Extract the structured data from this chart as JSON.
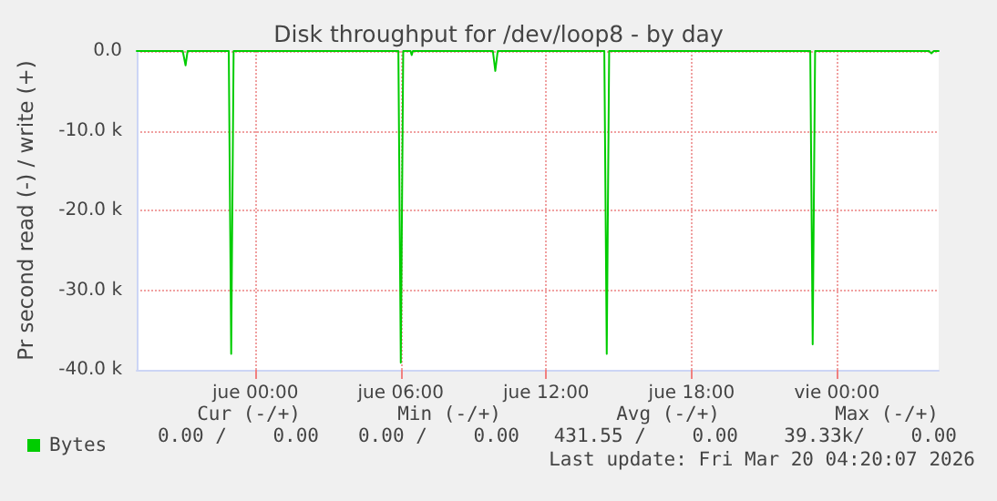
{
  "chart_data": {
    "type": "line",
    "title": "Disk throughput for /dev/loop8 - by day",
    "ylabel": "Pr second read (-) / write (+)",
    "xlim": [
      "2026-03-18T19:06",
      "2026-03-20T04:12"
    ],
    "xticks": [
      {
        "value": "2026-03-19T00:00",
        "label": "jue 00:00"
      },
      {
        "value": "2026-03-19T06:00",
        "label": "jue 06:00"
      },
      {
        "value": "2026-03-19T12:00",
        "label": "jue 12:00"
      },
      {
        "value": "2026-03-19T18:00",
        "label": "jue 18:00"
      },
      {
        "value": "2026-03-20T00:00",
        "label": "vie 00:00"
      }
    ],
    "ylim": [
      -40000,
      0
    ],
    "yticks": [
      {
        "value": -40000,
        "label": "-40.0 k"
      },
      {
        "value": -30000,
        "label": "-30.0 k"
      },
      {
        "value": -20000,
        "label": "-20.0 k"
      },
      {
        "value": -10000,
        "label": "-10.0 k"
      },
      {
        "value": 0,
        "label": "0.0"
      }
    ],
    "series": [
      {
        "name": "Bytes",
        "color": "#00cc00",
        "x": [
          "2026-03-18T19:06",
          "2026-03-18T21:00",
          "2026-03-18T21:07",
          "2026-03-18T21:12",
          "2026-03-18T22:54",
          "2026-03-18T23:00",
          "2026-03-18T23:06",
          "2026-03-19T05:54",
          "2026-03-19T06:00",
          "2026-03-19T06:06",
          "2026-03-19T06:24",
          "2026-03-19T06:27",
          "2026-03-19T06:30",
          "2026-03-19T09:48",
          "2026-03-19T09:54",
          "2026-03-19T10:00",
          "2026-03-19T14:24",
          "2026-03-19T14:30",
          "2026-03-19T14:36",
          "2026-03-19T22:54",
          "2026-03-19T23:00",
          "2026-03-19T23:06",
          "2026-03-20T03:48",
          "2026-03-20T03:54",
          "2026-03-20T04:00",
          "2026-03-20T04:12"
        ],
        "values": [
          0,
          0,
          -1800,
          0,
          0,
          -38000,
          0,
          0,
          -39100,
          0,
          0,
          -500,
          0,
          0,
          -2500,
          0,
          0,
          -38000,
          0,
          0,
          -36800,
          0,
          0,
          -300,
          0,
          0
        ]
      }
    ],
    "grid": true,
    "legend": "bottom left",
    "marker": "none",
    "line_style": "solid",
    "annotations": [
      "Cur (-/+)",
      "Min (-/+)",
      "Avg (-/+)",
      "Max (-/+)",
      "0.00 /    0.00",
      "0.00 /    0.00",
      "431.55 /    0.00",
      "39.33k/    0.00",
      "Last update: Fri Mar 20 04:20:07 2026"
    ]
  }
}
